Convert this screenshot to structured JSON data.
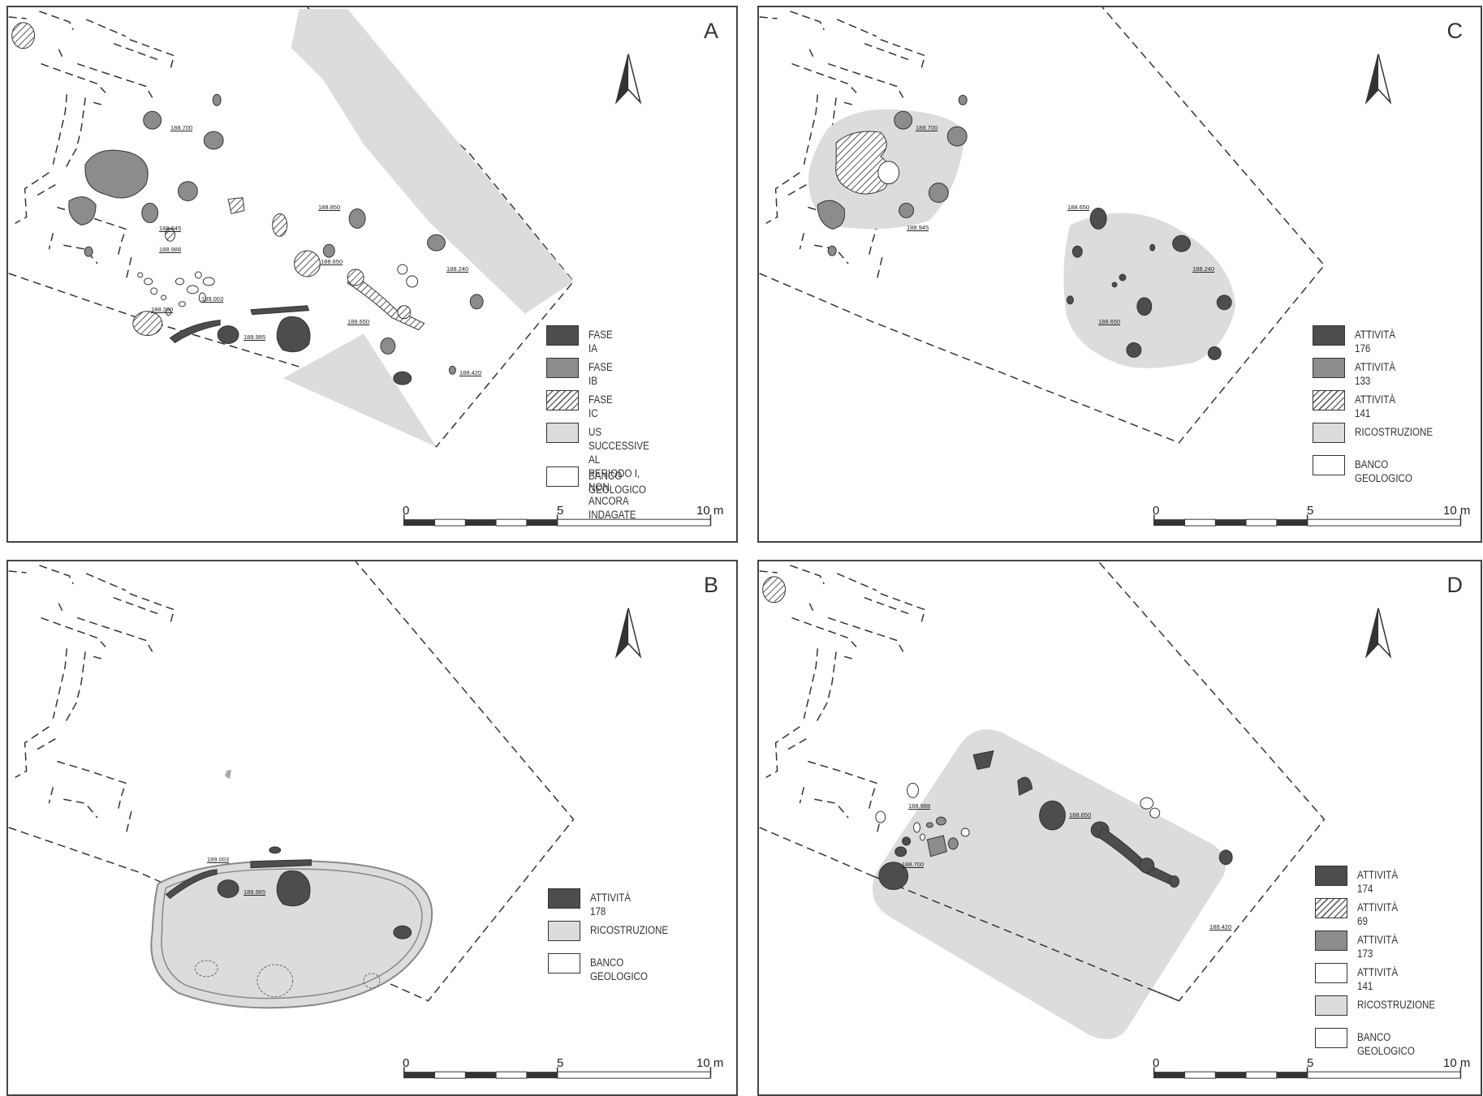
{
  "panels": {
    "a": {
      "letter": "A",
      "legend": [
        "FASE IA",
        "FASE IB",
        "FASE IC",
        "US SUCCESSIVE AL\nPERIODO I, NON ANCORA\nINDAGATE",
        "BANCO GEOLOGICO"
      ],
      "scale": [
        "0",
        "5",
        "10 m"
      ],
      "elevations": [
        "188.700",
        "188.945",
        "188.988",
        "188.200",
        "189.003",
        "188.850",
        "188.650",
        "188.240",
        "188.985",
        "188.650",
        "188.420"
      ]
    },
    "b": {
      "letter": "B",
      "legend": [
        "ATTIVITÀ 178",
        "RICOSTRUZIONE",
        "BANCO GEOLOGICO"
      ],
      "scale": [
        "0",
        "5",
        "10 m"
      ],
      "elevations": [
        "189.003",
        "188.985"
      ]
    },
    "c": {
      "letter": "C",
      "legend": [
        "ATTIVITÀ 176",
        "ATTIVITÀ 133",
        "ATTIVITÀ 141",
        "RICOSTRUZIONE",
        "BANCO GEOLOGICO"
      ],
      "scale": [
        "0",
        "5",
        "10 m"
      ],
      "elevations": [
        "188.700",
        "188.945",
        "188.650",
        "188.240",
        "188.650"
      ]
    },
    "d": {
      "letter": "D",
      "legend": [
        "ATTIVITÀ 174",
        "ATTIVITÀ 69",
        "ATTIVITÀ 173",
        "ATTIVITÀ 141",
        "RICOSTRUZIONE",
        "BANCO GEOLOGICO"
      ],
      "scale": [
        "0",
        "5",
        "10 m"
      ],
      "elevations": [
        "188.988",
        "188.700",
        "188.650",
        "188.420"
      ]
    }
  },
  "legend_swatches": {
    "a": [
      "dark",
      "mid",
      "hatch",
      "light",
      "white"
    ],
    "b": [
      "dark",
      "light",
      "white"
    ],
    "c": [
      "dark",
      "mid",
      "hatch",
      "light",
      "white"
    ],
    "d": [
      "dark",
      "hatch",
      "mid",
      "white",
      "light",
      "white"
    ]
  },
  "colors": {
    "dark": "#4d4d4d",
    "mid": "#8c8c8c",
    "light": "#dcdcdc",
    "outline": "#333333"
  },
  "icons": [
    "north-arrow-icon"
  ]
}
